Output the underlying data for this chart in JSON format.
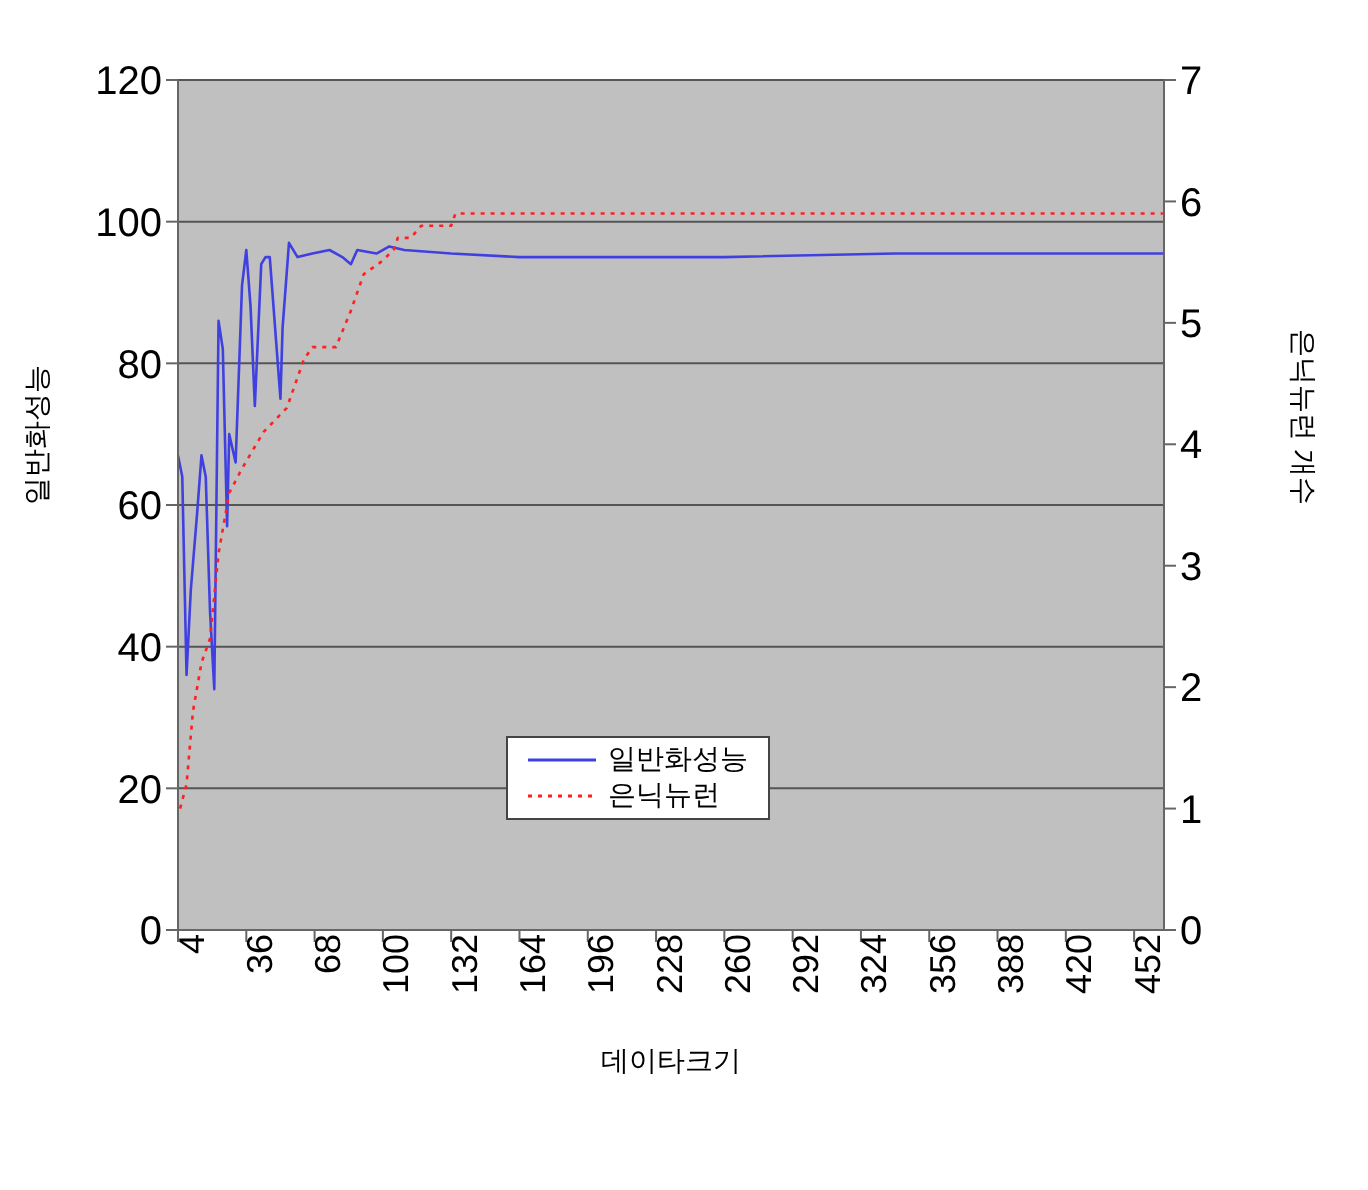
{
  "chart_data": {
    "type": "line",
    "xlabel": "데이타크기",
    "ylabel": "일반화성능",
    "y2label": "은닉뉴런 개수",
    "xlim": [
      4,
      466
    ],
    "xticks": [
      4,
      36,
      68,
      100,
      132,
      164,
      196,
      228,
      260,
      292,
      324,
      356,
      388,
      420,
      452
    ],
    "ylim": [
      0,
      120
    ],
    "yticks": [
      0,
      20,
      40,
      60,
      80,
      100,
      120
    ],
    "y2lim": [
      0,
      7
    ],
    "y2ticks": [
      0,
      1,
      2,
      3,
      4,
      5,
      6,
      7
    ],
    "grid": "y",
    "legend": "bottom",
    "marker": "none",
    "series": [
      {
        "name": "일반화성능",
        "color": "#4040e0",
        "line_style": "solid",
        "x": [
          4,
          6,
          8,
          10,
          13,
          15,
          17,
          19,
          21,
          23,
          25,
          27,
          28,
          31,
          34,
          36,
          38,
          40,
          43,
          45,
          47,
          50,
          52,
          53,
          56,
          60,
          67,
          75,
          81,
          85,
          88,
          97,
          103,
          110,
          132,
          164,
          260,
          340,
          466
        ],
        "values": [
          67,
          64,
          36,
          48,
          59,
          67,
          64,
          45,
          34,
          86,
          82,
          57,
          70,
          66,
          91,
          96,
          88,
          74,
          94,
          95,
          95,
          83,
          75,
          85,
          97,
          95,
          95.5,
          96,
          95,
          94,
          96,
          95.5,
          96.5,
          96,
          95.5,
          95,
          95,
          95.5,
          95.5
        ]
      },
      {
        "name": "은닉뉴런",
        "color": "#ff2020",
        "line_style": "dotted",
        "axis": "y2",
        "x": [
          5,
          8,
          11,
          15,
          19,
          23,
          28,
          34,
          44,
          55,
          63,
          67,
          78,
          85,
          91,
          99,
          105,
          107,
          113,
          118,
          132,
          134,
          466
        ],
        "values": [
          1,
          1.2,
          1.8,
          2.2,
          2.4,
          3.1,
          3.6,
          3.8,
          4.1,
          4.3,
          4.7,
          4.8,
          4.8,
          5.1,
          5.4,
          5.5,
          5.6,
          5.7,
          5.7,
          5.8,
          5.8,
          5.9,
          5.9
        ]
      }
    ]
  }
}
